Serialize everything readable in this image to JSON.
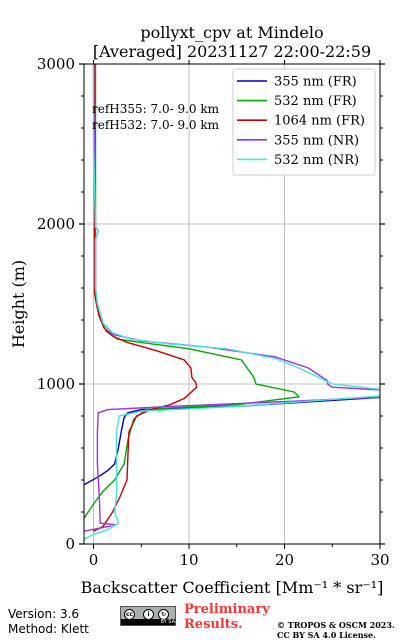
{
  "chart_data": {
    "type": "line",
    "title_line1": "pollyxt_cpv at Mindelo",
    "title_line2": "[Averaged] 20231127 22:00-22:59",
    "xlabel": "Backscatter Coefficient [Mm⁻¹ * sr⁻¹]",
    "ylabel": "Height (m)",
    "xlim": [
      -1,
      30
    ],
    "ylim": [
      0,
      3000
    ],
    "xticks": [
      "0",
      "10",
      "20",
      "30"
    ],
    "xtick_values": [
      0,
      10,
      20,
      30
    ],
    "yticks": [
      "0",
      "1000",
      "2000",
      "3000"
    ],
    "ytick_values": [
      0,
      1000,
      2000,
      3000
    ],
    "grid": true,
    "legend_position": "top-right",
    "annotations": [
      "refH355:  7.0- 9.0 km",
      "refH532:  7.0- 9.0 km"
    ],
    "series": [
      {
        "name": "355 nm (FR)",
        "color": "#0000cc",
        "points": [
          [
            -1,
            370
          ],
          [
            0.5,
            420
          ],
          [
            1.5,
            460
          ],
          [
            2.2,
            500
          ],
          [
            2.6,
            600
          ],
          [
            2.9,
            700
          ],
          [
            3.2,
            790
          ],
          [
            3.6,
            820
          ],
          [
            5,
            840
          ],
          [
            15,
            860
          ],
          [
            31,
            920
          ]
        ]
      },
      {
        "name": "532 nm (FR)",
        "color": "#00aa00",
        "points": [
          [
            -1,
            160
          ],
          [
            0,
            250
          ],
          [
            1,
            330
          ],
          [
            2.2,
            400
          ],
          [
            3.2,
            500
          ],
          [
            3.6,
            650
          ],
          [
            4.2,
            780
          ],
          [
            5.5,
            840
          ],
          [
            8,
            850
          ],
          [
            15,
            870
          ],
          [
            21.5,
            920
          ],
          [
            21,
            950
          ],
          [
            17,
            1000
          ],
          [
            16.8,
            1040
          ],
          [
            15.5,
            1150
          ],
          [
            10,
            1220
          ],
          [
            5,
            1260
          ],
          [
            2.5,
            1280
          ],
          [
            1.3,
            1330
          ],
          [
            0.8,
            1400
          ],
          [
            0.4,
            1500
          ],
          [
            0.2,
            1570
          ],
          [
            0.2,
            3000
          ]
        ]
      },
      {
        "name": "1064 nm (FR)",
        "color": "#cc0000",
        "points": [
          [
            0,
            80
          ],
          [
            1,
            110
          ],
          [
            2,
            200
          ],
          [
            2.8,
            300
          ],
          [
            3.5,
            400
          ],
          [
            3.6,
            550
          ],
          [
            3.7,
            700
          ],
          [
            4.5,
            800
          ],
          [
            6,
            840
          ],
          [
            8,
            870
          ],
          [
            9.5,
            910
          ],
          [
            10.8,
            980
          ],
          [
            10.7,
            1010
          ],
          [
            10.3,
            1040
          ],
          [
            10.2,
            1100
          ],
          [
            9.5,
            1150
          ],
          [
            6.5,
            1210
          ],
          [
            3.5,
            1260
          ],
          [
            2.0,
            1300
          ],
          [
            1.1,
            1350
          ],
          [
            0.6,
            1420
          ],
          [
            0.3,
            1500
          ],
          [
            0.1,
            1570
          ],
          [
            0.1,
            3000
          ]
        ]
      },
      {
        "name": "355 nm (NR)",
        "color": "#9933ee",
        "points": [
          [
            -1,
            80
          ],
          [
            2.4,
            120
          ],
          [
            0.7,
            130
          ],
          [
            0.6,
            300
          ],
          [
            0.4,
            500
          ],
          [
            0.4,
            700
          ],
          [
            0.5,
            820
          ],
          [
            1.5,
            840
          ],
          [
            8,
            860
          ],
          [
            20,
            890
          ],
          [
            31,
            920
          ],
          [
            31,
            960
          ],
          [
            25,
            980
          ],
          [
            24.5,
            1000
          ],
          [
            24.5,
            1020
          ],
          [
            22.5,
            1100
          ],
          [
            19,
            1170
          ],
          [
            12,
            1230
          ],
          [
            5,
            1270
          ],
          [
            2,
            1310
          ],
          [
            1,
            1380
          ],
          [
            0.4,
            1500
          ],
          [
            0.2,
            1600
          ],
          [
            0.2,
            1900
          ],
          [
            0.3,
            1920
          ],
          [
            0.5,
            1960
          ],
          [
            0.2,
            1980
          ],
          [
            0.1,
            2500
          ],
          [
            0,
            2800
          ],
          [
            0,
            3000
          ]
        ]
      },
      {
        "name": "532 nm (NR)",
        "color": "#44e8d8",
        "points": [
          [
            -1,
            30
          ],
          [
            0,
            60
          ],
          [
            1.5,
            90
          ],
          [
            2.6,
            130
          ],
          [
            2.2,
            200
          ],
          [
            2.4,
            300
          ],
          [
            2.4,
            500
          ],
          [
            2.4,
            700
          ],
          [
            2.7,
            800
          ],
          [
            5,
            830
          ],
          [
            15,
            860
          ],
          [
            31,
            930
          ],
          [
            31,
            960
          ],
          [
            25,
            1000
          ],
          [
            24,
            1030
          ],
          [
            21.5,
            1100
          ],
          [
            19,
            1160
          ],
          [
            14,
            1220
          ],
          [
            8,
            1250
          ],
          [
            4,
            1280
          ],
          [
            2,
            1320
          ],
          [
            1,
            1380
          ],
          [
            0.4,
            1500
          ],
          [
            0.2,
            1600
          ],
          [
            0.2,
            1900
          ],
          [
            0.3,
            1920
          ],
          [
            0.5,
            1960
          ],
          [
            0.2,
            1980
          ],
          [
            0,
            2500
          ],
          [
            0,
            3000
          ]
        ]
      }
    ]
  },
  "footer": {
    "version": "Version: 3.6",
    "method": "Method: Klett",
    "preliminary_line1": "Preliminary",
    "preliminary_line2": "Results.",
    "copyright_line1": "© TROPOS & OSCM 2023.",
    "copyright_line2": "CC BY SA 4.0 License.",
    "license_badge": "BY SA"
  }
}
